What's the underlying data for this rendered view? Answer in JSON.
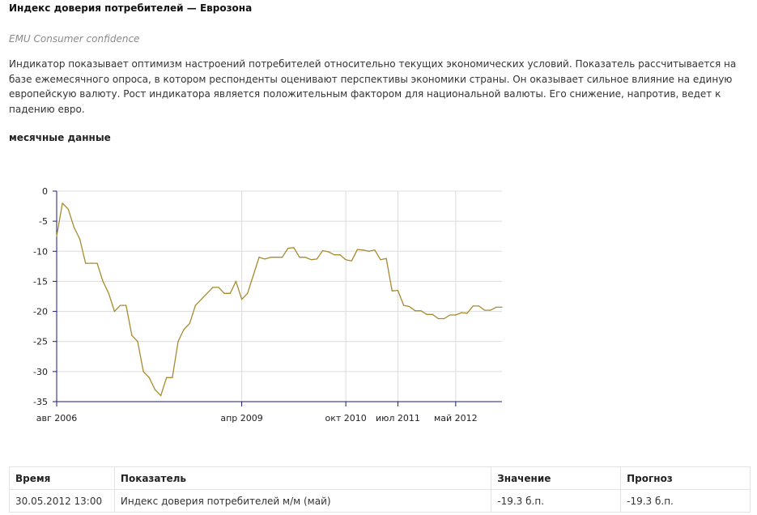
{
  "header": {
    "title": "Индекс доверия потребителей — Еврозона",
    "subtitle": "EMU Consumer confidence",
    "description": "Индикатор показывает оптимизм настроений потребителей относительно текущих экономических условий. Показатель рассчитывается на базе ежемесячного опроса, в котором респонденты оценивают перспективы экономики страны. Он оказывает сильное влияние на единую европейскую валюту. Рост индикатора является положительным фактором для национальной валюты. Его снижение, напротив, ведет к падению евро.",
    "section_title": "месячные данные"
  },
  "colors": {
    "line": "#a68a2e",
    "axis": "#1e1a78",
    "grid": "#dcdcdc"
  },
  "chart_data": {
    "type": "line",
    "ylim": [
      -35,
      0
    ],
    "yticks": [
      0,
      -5,
      -10,
      -15,
      -20,
      -25,
      -30,
      -35
    ],
    "grid": true,
    "xticks": [
      {
        "index": 0,
        "label": "авг 2006"
      },
      {
        "index": 32,
        "label": "апр 2009"
      },
      {
        "index": 50,
        "label": "окт 2010"
      },
      {
        "index": 59,
        "label": "июл 2011"
      },
      {
        "index": 69,
        "label": "май 2012"
      }
    ],
    "x_start": "авг 2006",
    "x_end": "май 2012",
    "series": [
      {
        "values": [
          -7.5,
          -2,
          -3,
          -6,
          -8,
          -12,
          -12,
          -12,
          -15,
          -17,
          -20,
          -19,
          -19,
          -24,
          -25,
          -30,
          -31,
          -33,
          -34,
          -31,
          -31,
          -25,
          -23,
          -22,
          -19,
          -18,
          -17,
          -16,
          -16,
          -17,
          -17,
          -15,
          -18,
          -17,
          -14,
          -11,
          -11.3,
          -11,
          -11,
          -11,
          -9.5,
          -9.4,
          -11,
          -11,
          -11.4,
          -11.3,
          -9.9,
          -10.1,
          -10.6,
          -10.6,
          -11.4,
          -11.6,
          -9.7,
          -9.8,
          -10,
          -9.8,
          -11.4,
          -11.2,
          -16.6,
          -16.5,
          -19,
          -19.2,
          -19.9,
          -19.9,
          -20.5,
          -20.5,
          -21.2,
          -21.2,
          -20.6,
          -20.6,
          -20.2,
          -20.3,
          -19.1,
          -19.1,
          -19.8,
          -19.8,
          -19.3,
          -19.3
        ]
      }
    ]
  },
  "table": {
    "headers": [
      "Время",
      "Показатель",
      "Значение",
      "Прогноз"
    ],
    "rows": [
      [
        "30.05.2012 13:00",
        "Индекс доверия потребителей м/м (май)",
        "-19.3 б.п.",
        "-19.3 б.п."
      ]
    ]
  }
}
